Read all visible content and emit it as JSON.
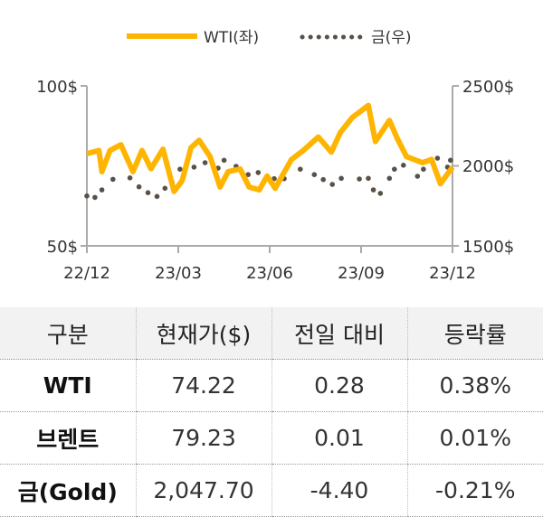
{
  "chart_data": {
    "type": "line",
    "legend": {
      "placement": "top",
      "entries": [
        "WTI(좌)",
        "금(우)"
      ]
    },
    "x_ticks": [
      "22/12",
      "23/03",
      "23/06",
      "23/09",
      "23/12"
    ],
    "x_range": [
      "2022-12-01",
      "2023-12-01"
    ],
    "y_left": {
      "ticks": [
        "100$",
        "50$"
      ],
      "range": [
        50,
        100
      ]
    },
    "y_right": {
      "ticks": [
        "2500$",
        "2000$",
        "1500$"
      ],
      "range": [
        1500,
        2500
      ]
    },
    "grid": false,
    "series": [
      {
        "name": "WTI(좌)",
        "axis": "left",
        "color": "#FFB400",
        "style": "solid",
        "points": [
          [
            "2022-12-01",
            78.8
          ],
          [
            "2022-12-13",
            79.8
          ],
          [
            "2022-12-16",
            73.2
          ],
          [
            "2022-12-24",
            79.8
          ],
          [
            "2023-01-04",
            81.6
          ],
          [
            "2023-01-16",
            73.2
          ],
          [
            "2023-01-25",
            79.8
          ],
          [
            "2023-02-03",
            74.1
          ],
          [
            "2023-02-15",
            80.2
          ],
          [
            "2023-02-26",
            67.0
          ],
          [
            "2023-03-06",
            70.3
          ],
          [
            "2023-03-15",
            80.7
          ],
          [
            "2023-03-23",
            83.0
          ],
          [
            "2023-04-03",
            77.9
          ],
          [
            "2023-04-13",
            68.4
          ],
          [
            "2023-04-21",
            73.2
          ],
          [
            "2023-05-03",
            74.0
          ],
          [
            "2023-05-12",
            68.4
          ],
          [
            "2023-05-22",
            67.5
          ],
          [
            "2023-05-30",
            71.8
          ],
          [
            "2023-06-07",
            68.0
          ],
          [
            "2023-06-23",
            76.9
          ],
          [
            "2023-07-05",
            79.8
          ],
          [
            "2023-07-20",
            84.0
          ],
          [
            "2023-08-02",
            79.3
          ],
          [
            "2023-08-11",
            85.4
          ],
          [
            "2023-08-23",
            90.1
          ],
          [
            "2023-09-08",
            93.9
          ],
          [
            "2023-09-15",
            82.6
          ],
          [
            "2023-09-29",
            89.2
          ],
          [
            "2023-10-07",
            83.5
          ],
          [
            "2023-10-16",
            77.9
          ],
          [
            "2023-11-01",
            76.0
          ],
          [
            "2023-11-10",
            77.0
          ],
          [
            "2023-11-19",
            69.4
          ],
          [
            "2023-12-01",
            74.6
          ]
        ]
      },
      {
        "name": "금(우)",
        "axis": "right",
        "color": "#595048",
        "style": "dotted",
        "points": [
          [
            "2022-12-01",
            1812
          ],
          [
            "2022-12-09",
            1803
          ],
          [
            "2022-12-16",
            1850
          ],
          [
            "2022-12-27",
            1916
          ],
          [
            "2023-01-13",
            1925
          ],
          [
            "2023-01-22",
            1869
          ],
          [
            "2023-01-31",
            1832
          ],
          [
            "2023-02-09",
            1809
          ],
          [
            "2023-02-17",
            1860
          ],
          [
            "2023-02-24",
            1897
          ],
          [
            "2023-03-04",
            1979
          ],
          [
            "2023-03-18",
            1992
          ],
          [
            "2023-03-29",
            2020
          ],
          [
            "2023-04-11",
            1986
          ],
          [
            "2023-04-17",
            2035
          ],
          [
            "2023-04-29",
            1997
          ],
          [
            "2023-05-11",
            1945
          ],
          [
            "2023-05-21",
            1958
          ],
          [
            "2023-06-06",
            1920
          ],
          [
            "2023-06-16",
            1920
          ],
          [
            "2023-07-02",
            1979
          ],
          [
            "2023-07-16",
            1945
          ],
          [
            "2023-07-25",
            1914
          ],
          [
            "2023-08-03",
            1884
          ],
          [
            "2023-08-12",
            1922
          ],
          [
            "2023-08-30",
            1918
          ],
          [
            "2023-09-08",
            1922
          ],
          [
            "2023-09-13",
            1850
          ],
          [
            "2023-09-20",
            1828
          ],
          [
            "2023-09-29",
            1922
          ],
          [
            "2023-10-04",
            1979
          ],
          [
            "2023-10-13",
            2004
          ],
          [
            "2023-10-27",
            1935
          ],
          [
            "2023-11-02",
            1979
          ],
          [
            "2023-11-16",
            2048
          ],
          [
            "2023-11-26",
            1992
          ],
          [
            "2023-11-29",
            2035
          ]
        ]
      }
    ]
  },
  "table": {
    "headers": [
      "구분",
      "현재가($)",
      "전일 대비",
      "등락률"
    ],
    "rows": [
      [
        "WTI",
        "74.22",
        "0.28",
        "0.38%"
      ],
      [
        "브렌트",
        "79.23",
        "0.01",
        "0.01%"
      ],
      [
        "금(Gold)",
        "2,047.70",
        "-4.40",
        "-0.21%"
      ]
    ]
  }
}
